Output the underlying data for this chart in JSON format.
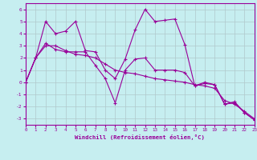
{
  "xlabel": "Windchill (Refroidissement éolien,°C)",
  "xlim": [
    0,
    23
  ],
  "ylim": [
    -3.5,
    6.5
  ],
  "yticks": [
    -3,
    -2,
    -1,
    0,
    1,
    2,
    3,
    4,
    5,
    6
  ],
  "xticks": [
    0,
    1,
    2,
    3,
    4,
    5,
    6,
    7,
    8,
    9,
    10,
    11,
    12,
    13,
    14,
    15,
    16,
    17,
    18,
    19,
    20,
    21,
    22,
    23
  ],
  "bg_color": "#c6eef0",
  "line_color": "#990099",
  "grid_color": "#b0c8cc",
  "lines": [
    {
      "x": [
        0,
        1,
        2,
        3,
        4,
        5,
        6,
        7,
        8,
        9,
        10,
        11,
        12,
        13,
        14,
        15,
        16,
        17,
        18,
        19,
        20,
        21,
        22,
        23
      ],
      "y": [
        0,
        2,
        5,
        4,
        4.2,
        5.0,
        2.6,
        2.5,
        1.0,
        0.3,
        1.9,
        4.3,
        6.0,
        5.0,
        5.1,
        5.2,
        3.1,
        -0.3,
        0.0,
        -0.2,
        -1.8,
        -1.6,
        -2.5,
        -3.1
      ]
    },
    {
      "x": [
        0,
        1,
        2,
        3,
        4,
        5,
        6,
        7,
        8,
        9,
        10,
        11,
        12,
        13,
        14,
        15,
        16,
        17,
        18,
        19,
        20,
        21,
        22,
        23
      ],
      "y": [
        0,
        2,
        3.2,
        2.7,
        2.5,
        2.5,
        2.5,
        1.4,
        0.3,
        -1.7,
        1.0,
        1.9,
        2.0,
        1.0,
        1.0,
        1.0,
        0.8,
        -0.3,
        -0.1,
        -0.2,
        -1.8,
        -1.7,
        -2.5,
        -3.1
      ]
    },
    {
      "x": [
        0,
        1,
        2,
        3,
        4,
        5,
        6,
        7,
        8,
        9,
        10,
        11,
        12,
        13,
        14,
        15,
        16,
        17,
        18,
        19,
        20,
        21,
        22,
        23
      ],
      "y": [
        0,
        2.0,
        3.0,
        3.0,
        2.6,
        2.3,
        2.2,
        2.0,
        1.5,
        1.0,
        0.8,
        0.7,
        0.5,
        0.3,
        0.2,
        0.1,
        0.0,
        -0.2,
        -0.3,
        -0.5,
        -1.5,
        -1.8,
        -2.4,
        -3.0
      ]
    }
  ]
}
